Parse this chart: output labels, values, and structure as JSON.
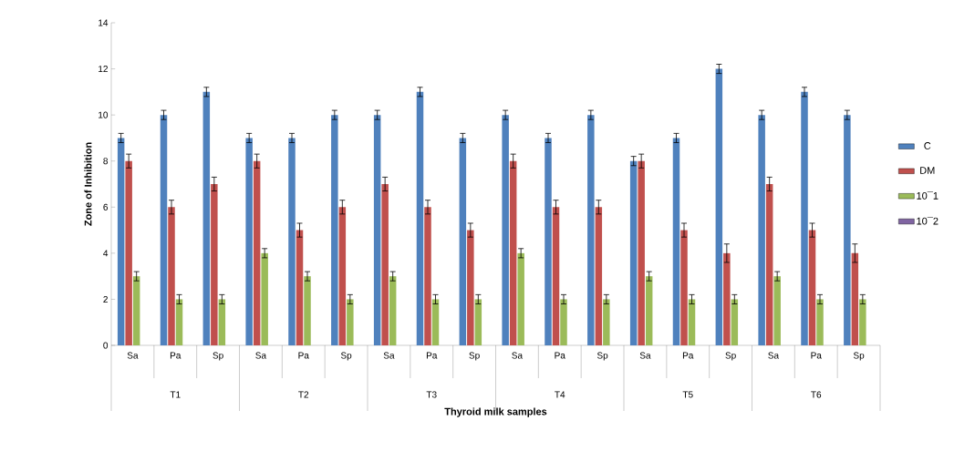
{
  "chart_data": {
    "type": "bar",
    "xlabel": "Thyroid milk samples",
    "ylabel": "Zone of Inhibition",
    "categories": [
      "Sa",
      "Pa",
      "Sp",
      "Sa",
      "Pa",
      "Sp",
      "Sa",
      "Pa",
      "Sp",
      "Sa",
      "Pa",
      "Sp",
      "Sa",
      "Pa",
      "Sp",
      "Sa",
      "Pa",
      "Sp"
    ],
    "annotations": [
      "T1",
      "T2",
      "T3",
      "T4",
      "T5",
      "T6"
    ],
    "series": [
      {
        "name": "C",
        "color": "#4f81bd",
        "values": [
          9,
          10,
          11,
          9,
          9,
          10,
          10,
          11,
          9,
          10,
          9,
          10,
          8,
          9,
          12,
          10,
          11,
          10
        ],
        "errors": [
          0.2,
          0.2,
          0.2,
          0.2,
          0.2,
          0.2,
          0.2,
          0.2,
          0.2,
          0.2,
          0.2,
          0.2,
          0.2,
          0.2,
          0.2,
          0.2,
          0.2,
          0.2
        ]
      },
      {
        "name": "DM",
        "color": "#c0504d",
        "values": [
          8,
          6,
          7,
          8,
          5,
          6,
          7,
          6,
          5,
          8,
          6,
          6,
          8,
          5,
          4,
          7,
          5,
          4
        ],
        "errors": [
          0.3,
          0.3,
          0.3,
          0.3,
          0.3,
          0.3,
          0.3,
          0.3,
          0.3,
          0.3,
          0.3,
          0.3,
          0.3,
          0.3,
          0.4,
          0.3,
          0.3,
          0.4
        ]
      },
      {
        "name": "10¯1",
        "color": "#9bbb59",
        "values": [
          3,
          2,
          2,
          4,
          3,
          2,
          3,
          2,
          2,
          4,
          2,
          2,
          3,
          2,
          2,
          3,
          2,
          2
        ],
        "errors": [
          0.2,
          0.2,
          0.2,
          0.2,
          0.2,
          0.2,
          0.2,
          0.2,
          0.2,
          0.2,
          0.2,
          0.2,
          0.2,
          0.2,
          0.2,
          0.2,
          0.2,
          0.2
        ]
      },
      {
        "name": "10¯2",
        "color": "#8064a2",
        "values": [
          null,
          null,
          null,
          null,
          null,
          null,
          null,
          null,
          null,
          null,
          null,
          null,
          null,
          null,
          null,
          null,
          null,
          null
        ]
      }
    ],
    "ylim": [
      0,
      14
    ],
    "yticks": [
      0,
      2,
      4,
      6,
      8,
      10,
      12,
      14
    ],
    "legend": "right"
  }
}
